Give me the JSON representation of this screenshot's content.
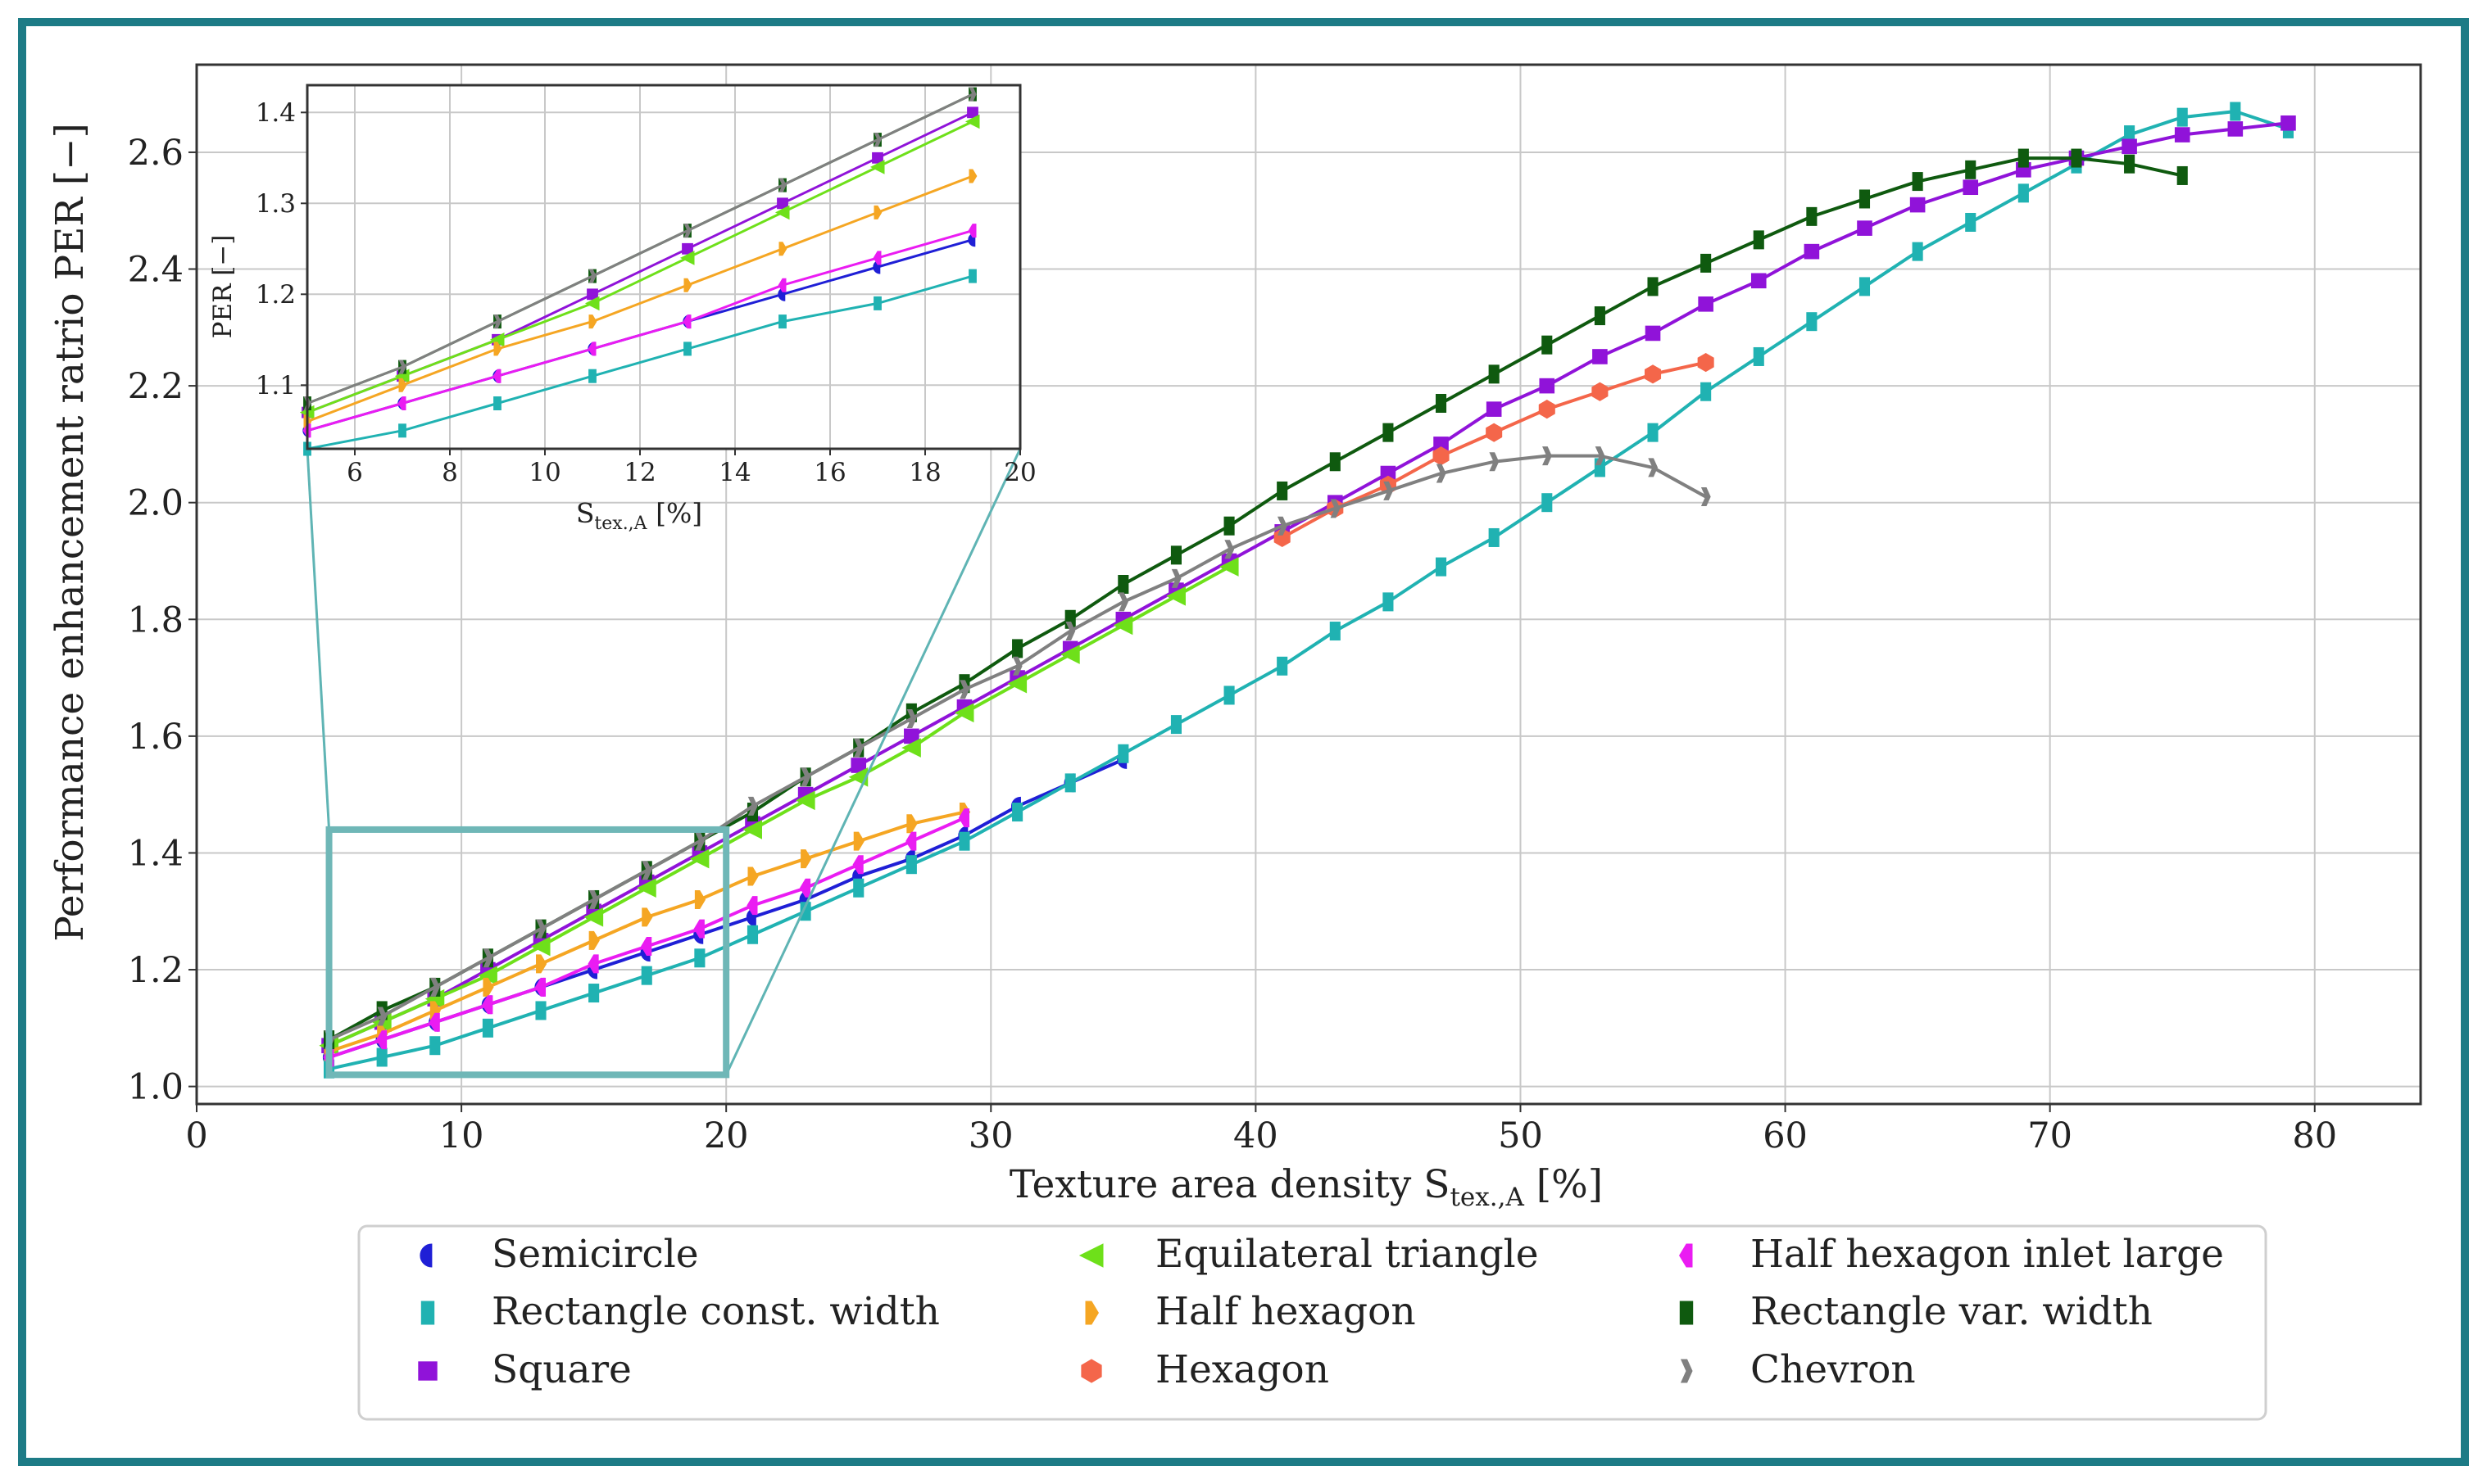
{
  "chart_data": [
    {
      "type": "line",
      "title": "",
      "xlabel": "Texture area density",
      "xlabel_symbol": "S",
      "xlabel_subscript": "tex.,A",
      "xlabel_unit": "[%]",
      "ylabel": "Performance enhancement ratrio PER [−]",
      "xlim": [
        0,
        84
      ],
      "ylim": [
        0.97,
        2.75
      ],
      "xticks": [
        0,
        10,
        20,
        30,
        40,
        50,
        60,
        70,
        80
      ],
      "yticks": [
        1.0,
        1.2,
        1.4,
        1.6,
        1.8,
        2.0,
        2.2,
        2.4,
        2.6
      ],
      "xtick_labels": [
        "0",
        "10",
        "20",
        "30",
        "40",
        "50",
        "60",
        "70",
        "80"
      ],
      "ytick_labels": [
        "1.0",
        "1.2",
        "1.4",
        "1.6",
        "1.8",
        "2.0",
        "2.2",
        "2.4",
        "2.6"
      ],
      "grid": true,
      "legend_position": "bottom-center",
      "zoom_region": {
        "x": [
          5,
          20
        ],
        "y": [
          1.02,
          1.44
        ]
      },
      "series": [
        {
          "name": "Semicircle",
          "color": "#1f1fd6",
          "marker": "semicircle",
          "x": [
            5,
            7,
            9,
            11,
            13,
            15,
            17,
            19,
            21,
            23,
            25,
            27,
            29,
            31,
            33,
            35
          ],
          "y": [
            1.05,
            1.08,
            1.11,
            1.14,
            1.17,
            1.2,
            1.23,
            1.26,
            1.29,
            1.32,
            1.36,
            1.39,
            1.43,
            1.48,
            1.52,
            1.56
          ]
        },
        {
          "name": "Rectangle const. width",
          "color": "#20b2b2",
          "marker": "rect",
          "x": [
            5,
            7,
            9,
            11,
            13,
            15,
            17,
            19,
            21,
            23,
            25,
            27,
            29,
            31,
            33,
            35,
            37,
            39,
            41,
            43,
            45,
            47,
            49,
            51,
            53,
            55,
            57,
            59,
            61,
            63,
            65,
            67,
            69,
            71,
            73,
            75,
            77,
            79
          ],
          "y": [
            1.03,
            1.05,
            1.07,
            1.1,
            1.13,
            1.16,
            1.19,
            1.22,
            1.26,
            1.3,
            1.34,
            1.38,
            1.42,
            1.47,
            1.52,
            1.57,
            1.62,
            1.67,
            1.72,
            1.78,
            1.83,
            1.89,
            1.94,
            2.0,
            2.06,
            2.12,
            2.19,
            2.25,
            2.31,
            2.37,
            2.43,
            2.48,
            2.53,
            2.58,
            2.63,
            2.66,
            2.67,
            2.64
          ]
        },
        {
          "name": "Square",
          "color": "#9013d9",
          "marker": "square",
          "x": [
            5,
            7,
            9,
            11,
            13,
            15,
            17,
            19,
            21,
            23,
            25,
            27,
            29,
            31,
            33,
            35,
            37,
            39,
            41,
            43,
            45,
            47,
            49,
            51,
            53,
            55,
            57,
            59,
            61,
            63,
            65,
            67,
            69,
            71,
            73,
            75,
            77,
            79
          ],
          "y": [
            1.07,
            1.11,
            1.15,
            1.2,
            1.25,
            1.3,
            1.35,
            1.4,
            1.45,
            1.5,
            1.55,
            1.6,
            1.65,
            1.7,
            1.75,
            1.8,
            1.85,
            1.9,
            1.95,
            2.0,
            2.05,
            2.1,
            2.16,
            2.2,
            2.25,
            2.29,
            2.34,
            2.38,
            2.43,
            2.47,
            2.51,
            2.54,
            2.57,
            2.59,
            2.61,
            2.63,
            2.64,
            2.65
          ]
        },
        {
          "name": "Equilateral triangle",
          "color": "#6ee01a",
          "marker": "triangle-left",
          "x": [
            5,
            7,
            9,
            11,
            13,
            15,
            17,
            19,
            21,
            23,
            25,
            27,
            29,
            31,
            33,
            35,
            37,
            39
          ],
          "y": [
            1.07,
            1.11,
            1.15,
            1.19,
            1.24,
            1.29,
            1.34,
            1.39,
            1.44,
            1.49,
            1.53,
            1.58,
            1.64,
            1.69,
            1.74,
            1.79,
            1.84,
            1.89
          ]
        },
        {
          "name": "Half hexagon",
          "color": "#f5a623",
          "marker": "half-hexagon",
          "x": [
            5,
            7,
            9,
            11,
            13,
            15,
            17,
            19,
            21,
            23,
            25,
            27,
            29
          ],
          "y": [
            1.06,
            1.09,
            1.13,
            1.17,
            1.21,
            1.25,
            1.29,
            1.32,
            1.36,
            1.39,
            1.42,
            1.45,
            1.47
          ]
        },
        {
          "name": "Hexagon",
          "color": "#f4664a",
          "marker": "hexagon",
          "x": [
            41,
            43,
            45,
            47,
            49,
            51,
            53,
            55,
            57
          ],
          "y": [
            1.94,
            1.99,
            2.03,
            2.08,
            2.12,
            2.16,
            2.19,
            2.22,
            2.24
          ]
        },
        {
          "name": "Half hexagon inlet large",
          "color": "#ea1cf2",
          "marker": "half-hexagon-left",
          "x": [
            5,
            7,
            9,
            11,
            13,
            15,
            17,
            19,
            21,
            23,
            25,
            27,
            29
          ],
          "y": [
            1.05,
            1.08,
            1.11,
            1.14,
            1.17,
            1.21,
            1.24,
            1.27,
            1.31,
            1.34,
            1.38,
            1.42,
            1.46
          ]
        },
        {
          "name": "Rectangle var. width",
          "color": "#0f5a0f",
          "marker": "rect",
          "x": [
            5,
            7,
            9,
            11,
            13,
            15,
            17,
            19,
            21,
            23,
            25,
            27,
            29,
            31,
            33,
            35,
            37,
            39,
            41,
            43,
            45,
            47,
            49,
            51,
            53,
            55,
            57,
            59,
            61,
            63,
            65,
            67,
            69,
            71,
            73,
            75
          ],
          "y": [
            1.08,
            1.13,
            1.17,
            1.22,
            1.27,
            1.32,
            1.37,
            1.42,
            1.47,
            1.53,
            1.58,
            1.64,
            1.69,
            1.75,
            1.8,
            1.86,
            1.91,
            1.96,
            2.02,
            2.07,
            2.12,
            2.17,
            2.22,
            2.27,
            2.32,
            2.37,
            2.41,
            2.45,
            2.49,
            2.52,
            2.55,
            2.57,
            2.59,
            2.59,
            2.58,
            2.56
          ]
        },
        {
          "name": "Chevron",
          "color": "#808080",
          "marker": "chevron",
          "x": [
            5,
            7,
            9,
            11,
            13,
            15,
            17,
            19,
            21,
            23,
            25,
            27,
            29,
            31,
            33,
            35,
            37,
            39,
            41,
            43,
            45,
            47,
            49,
            51,
            53,
            55,
            57
          ],
          "y": [
            1.08,
            1.12,
            1.17,
            1.22,
            1.27,
            1.32,
            1.37,
            1.42,
            1.48,
            1.53,
            1.58,
            1.63,
            1.68,
            1.72,
            1.78,
            1.83,
            1.87,
            1.92,
            1.96,
            1.99,
            2.02,
            2.05,
            2.07,
            2.08,
            2.08,
            2.06,
            2.01
          ]
        }
      ]
    },
    {
      "type": "line",
      "title": "",
      "xlabel": "",
      "xlabel_symbol": "S",
      "xlabel_subscript": "tex.,A",
      "xlabel_unit": "[%]",
      "ylabel": "PER [−]",
      "xlim": [
        5,
        20
      ],
      "ylim": [
        1.03,
        1.43
      ],
      "xticks": [
        6,
        8,
        10,
        12,
        14,
        16,
        18,
        20
      ],
      "yticks": [
        1.1,
        1.2,
        1.3,
        1.4
      ],
      "xtick_labels": [
        "6",
        "8",
        "10",
        "12",
        "14",
        "16",
        "18",
        "20"
      ],
      "ytick_labels": [
        "1.1",
        "1.2",
        "1.3",
        "1.4"
      ],
      "grid": true,
      "legend_position": "none",
      "series": [
        {
          "name": "Semicircle",
          "color": "#1f1fd6",
          "marker": "semicircle",
          "x": [
            5,
            7,
            9,
            11,
            13,
            15,
            17,
            19
          ],
          "y": [
            1.05,
            1.08,
            1.11,
            1.14,
            1.17,
            1.2,
            1.23,
            1.26
          ]
        },
        {
          "name": "Rectangle const. width",
          "color": "#20b2b2",
          "marker": "rect",
          "x": [
            5,
            7,
            9,
            11,
            13,
            15,
            17,
            19
          ],
          "y": [
            1.03,
            1.05,
            1.08,
            1.11,
            1.14,
            1.17,
            1.19,
            1.22
          ]
        },
        {
          "name": "Square",
          "color": "#9013d9",
          "marker": "square",
          "x": [
            5,
            7,
            9,
            11,
            13,
            15,
            17,
            19
          ],
          "y": [
            1.07,
            1.11,
            1.15,
            1.2,
            1.25,
            1.3,
            1.35,
            1.4
          ]
        },
        {
          "name": "Equilateral triangle",
          "color": "#6ee01a",
          "marker": "triangle-left",
          "x": [
            5,
            7,
            9,
            11,
            13,
            15,
            17,
            19
          ],
          "y": [
            1.07,
            1.11,
            1.15,
            1.19,
            1.24,
            1.29,
            1.34,
            1.39
          ]
        },
        {
          "name": "Half hexagon",
          "color": "#f5a623",
          "marker": "half-hexagon",
          "x": [
            5,
            7,
            9,
            11,
            13,
            15,
            17,
            19
          ],
          "y": [
            1.06,
            1.1,
            1.14,
            1.17,
            1.21,
            1.25,
            1.29,
            1.33
          ]
        },
        {
          "name": "Half hexagon inlet large",
          "color": "#ea1cf2",
          "marker": "half-hexagon-left",
          "x": [
            5,
            7,
            9,
            11,
            13,
            15,
            17,
            19
          ],
          "y": [
            1.05,
            1.08,
            1.11,
            1.14,
            1.17,
            1.21,
            1.24,
            1.27
          ]
        },
        {
          "name": "Rectangle var. width",
          "color": "#0f5a0f",
          "marker": "rect",
          "x": [
            5,
            7,
            9,
            11,
            13,
            15,
            17,
            19
          ],
          "y": [
            1.08,
            1.12,
            1.17,
            1.22,
            1.27,
            1.32,
            1.37,
            1.42
          ]
        },
        {
          "name": "Chevron",
          "color": "#808080",
          "marker": "chevron",
          "x": [
            5,
            7,
            9,
            11,
            13,
            15,
            17,
            19
          ],
          "y": [
            1.08,
            1.12,
            1.17,
            1.22,
            1.27,
            1.32,
            1.37,
            1.42
          ]
        }
      ]
    }
  ],
  "legend": {
    "items": [
      "Semicircle",
      "Equilateral triangle",
      "Half hexagon inlet large",
      "Rectangle const. width",
      "Half hexagon",
      "Rectangle var. width",
      "Square",
      "Hexagon",
      "Chevron"
    ]
  }
}
